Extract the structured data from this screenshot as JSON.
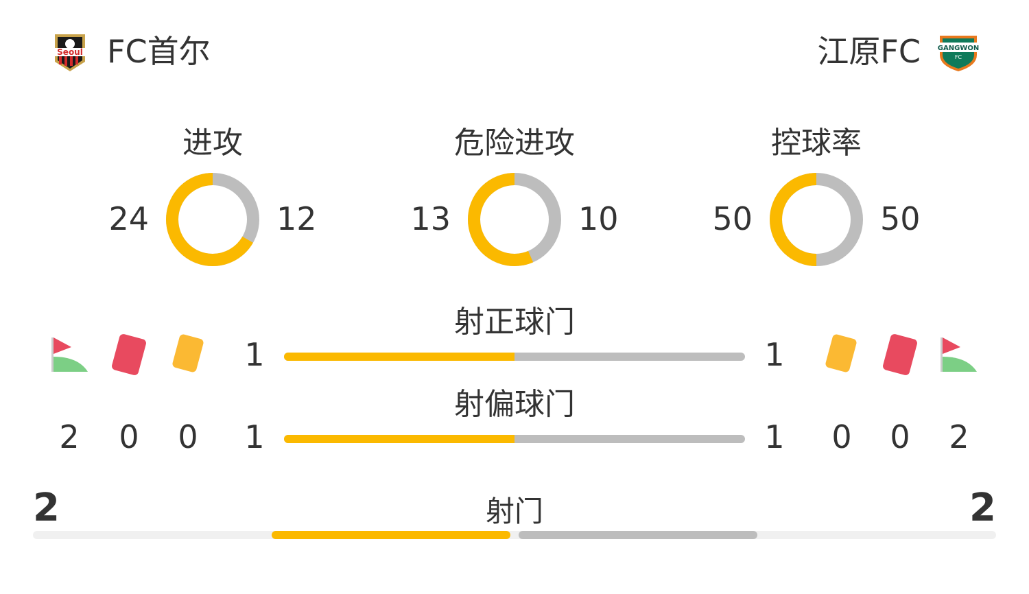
{
  "home": {
    "name": "FC首尔",
    "logo_text": "Seoul"
  },
  "away": {
    "name": "江原FC",
    "logo_text": "GANGWON FC"
  },
  "colors": {
    "home": "#fbb900",
    "away": "#bdbdbd",
    "track": "#f0f0f0",
    "red_card": "#e84a5f",
    "yellow_card": "#fbb933",
    "corner_flag": "#e84a5f",
    "corner_field": "#7ccf85"
  },
  "donuts": [
    {
      "label": "进攻",
      "home": 24,
      "away": 12
    },
    {
      "label": "危险进攻",
      "home": 13,
      "away": 10
    },
    {
      "label": "控球率",
      "home": 50,
      "away": 50
    }
  ],
  "bars": [
    {
      "label": "射正球门",
      "home": 1,
      "away": 1
    },
    {
      "label": "射偏球门",
      "home": 1,
      "away": 1
    }
  ],
  "icons": [
    "corner-flag-icon",
    "red-card-icon",
    "yellow-card-icon"
  ],
  "home_counts": {
    "corners": 2,
    "red_cards": 0,
    "yellow_cards": 0
  },
  "away_counts": {
    "corners": 2,
    "red_cards": 0,
    "yellow_cards": 0
  },
  "shots": {
    "label": "射门",
    "home": 2,
    "away": 2
  }
}
